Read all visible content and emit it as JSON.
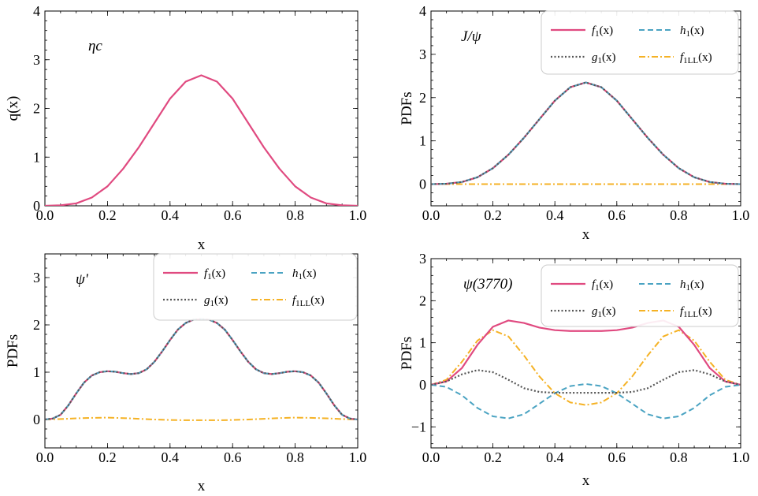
{
  "colors": {
    "f1": "#E04A80",
    "h1": "#4AA3C2",
    "g1": "#555555",
    "f1LL": "#F5B225"
  },
  "chart_data": [
    {
      "type": "line",
      "annotation": "ηc",
      "xlabel": "x",
      "ylabel": "q(x)",
      "xlim": [
        0,
        1
      ],
      "ylim": [
        0,
        4
      ],
      "xticks": [
        "0.0",
        "0.2",
        "0.4",
        "0.6",
        "0.8",
        "1.0"
      ],
      "yticks": [
        "0",
        "1",
        "2",
        "3",
        "4"
      ],
      "legend": null,
      "series": [
        {
          "key": "f1",
          "x": [
            0,
            0.05,
            0.1,
            0.15,
            0.2,
            0.25,
            0.3,
            0.35,
            0.4,
            0.45,
            0.5,
            0.55,
            0.6,
            0.65,
            0.7,
            0.75,
            0.8,
            0.85,
            0.9,
            0.95,
            1
          ],
          "y": [
            0,
            0.01,
            0.05,
            0.17,
            0.4,
            0.76,
            1.2,
            1.7,
            2.2,
            2.55,
            2.68,
            2.55,
            2.2,
            1.7,
            1.2,
            0.76,
            0.4,
            0.17,
            0.05,
            0.01,
            0
          ]
        }
      ]
    },
    {
      "type": "line",
      "annotation": "J/ψ",
      "xlabel": "x",
      "ylabel": "PDFs",
      "xlim": [
        0,
        1
      ],
      "ylim": [
        -0.5,
        4
      ],
      "xticks": [
        "0.0",
        "0.2",
        "0.4",
        "0.6",
        "0.8",
        "1.0"
      ],
      "yticks": [
        "0",
        "1",
        "2",
        "3",
        "4"
      ],
      "legend": "top-right",
      "series": [
        {
          "key": "f1",
          "legend": "f1(x)",
          "x": [
            0,
            0.05,
            0.1,
            0.15,
            0.2,
            0.25,
            0.3,
            0.35,
            0.4,
            0.45,
            0.5,
            0.55,
            0.6,
            0.65,
            0.7,
            0.75,
            0.8,
            0.85,
            0.9,
            0.95,
            1
          ],
          "y": [
            0,
            0.01,
            0.05,
            0.16,
            0.37,
            0.68,
            1.07,
            1.5,
            1.93,
            2.24,
            2.35,
            2.24,
            1.93,
            1.5,
            1.07,
            0.68,
            0.37,
            0.16,
            0.05,
            0.01,
            0
          ]
        },
        {
          "key": "h1",
          "legend": "h1(x)",
          "x": [
            0,
            0.05,
            0.1,
            0.15,
            0.2,
            0.25,
            0.3,
            0.35,
            0.4,
            0.45,
            0.5,
            0.55,
            0.6,
            0.65,
            0.7,
            0.75,
            0.8,
            0.85,
            0.9,
            0.95,
            1
          ],
          "y": [
            0,
            0.01,
            0.05,
            0.16,
            0.37,
            0.68,
            1.07,
            1.5,
            1.93,
            2.24,
            2.35,
            2.24,
            1.93,
            1.5,
            1.07,
            0.68,
            0.37,
            0.16,
            0.05,
            0.01,
            0
          ]
        },
        {
          "key": "g1",
          "legend": "g1(x)",
          "x": [
            0,
            0.05,
            0.1,
            0.15,
            0.2,
            0.25,
            0.3,
            0.35,
            0.4,
            0.45,
            0.5,
            0.55,
            0.6,
            0.65,
            0.7,
            0.75,
            0.8,
            0.85,
            0.9,
            0.95,
            1
          ],
          "y": [
            0,
            0.01,
            0.05,
            0.16,
            0.37,
            0.68,
            1.07,
            1.5,
            1.93,
            2.24,
            2.35,
            2.24,
            1.93,
            1.5,
            1.07,
            0.68,
            0.37,
            0.16,
            0.05,
            0.01,
            0
          ]
        },
        {
          "key": "f1LL",
          "legend": "f1LL(x)",
          "x": [
            0,
            0.1,
            0.2,
            0.3,
            0.4,
            0.5,
            0.6,
            0.7,
            0.8,
            0.9,
            1
          ],
          "y": [
            0,
            0,
            0,
            0,
            0,
            0,
            0,
            0,
            0,
            0,
            0
          ]
        }
      ]
    },
    {
      "type": "line",
      "annotation": "ψ'",
      "xlabel": "x",
      "ylabel": "PDFs",
      "xlim": [
        0,
        1
      ],
      "ylim": [
        -0.6,
        3.5
      ],
      "xticks": [
        "0.0",
        "0.2",
        "0.4",
        "0.6",
        "0.8",
        "1.0"
      ],
      "yticks": [
        "0",
        "1",
        "2",
        "3"
      ],
      "legend": "top-right",
      "series": [
        {
          "key": "f1",
          "legend": "f1(x)",
          "x": [
            0,
            0.025,
            0.05,
            0.075,
            0.1,
            0.125,
            0.15,
            0.175,
            0.2,
            0.225,
            0.25,
            0.275,
            0.3,
            0.325,
            0.35,
            0.375,
            0.4,
            0.425,
            0.45,
            0.475,
            0.5,
            0.525,
            0.55,
            0.575,
            0.6,
            0.625,
            0.65,
            0.675,
            0.7,
            0.725,
            0.75,
            0.775,
            0.8,
            0.825,
            0.85,
            0.875,
            0.9,
            0.925,
            0.95,
            0.975,
            1
          ],
          "y": [
            0,
            0.02,
            0.1,
            0.3,
            0.55,
            0.78,
            0.93,
            1.0,
            1.02,
            1.01,
            0.98,
            0.96,
            0.98,
            1.06,
            1.22,
            1.44,
            1.68,
            1.9,
            2.04,
            2.11,
            2.12,
            2.11,
            2.04,
            1.9,
            1.68,
            1.44,
            1.22,
            1.06,
            0.98,
            0.96,
            0.98,
            1.01,
            1.02,
            1.0,
            0.93,
            0.78,
            0.55,
            0.3,
            0.1,
            0.02,
            0
          ]
        },
        {
          "key": "h1",
          "legend": "h1(x)",
          "x": [
            0,
            0.025,
            0.05,
            0.075,
            0.1,
            0.125,
            0.15,
            0.175,
            0.2,
            0.225,
            0.25,
            0.275,
            0.3,
            0.325,
            0.35,
            0.375,
            0.4,
            0.425,
            0.45,
            0.475,
            0.5,
            0.525,
            0.55,
            0.575,
            0.6,
            0.625,
            0.65,
            0.675,
            0.7,
            0.725,
            0.75,
            0.775,
            0.8,
            0.825,
            0.85,
            0.875,
            0.9,
            0.925,
            0.95,
            0.975,
            1
          ],
          "y": [
            0,
            0.02,
            0.1,
            0.3,
            0.55,
            0.78,
            0.93,
            1.0,
            1.02,
            1.01,
            0.98,
            0.96,
            0.98,
            1.06,
            1.22,
            1.44,
            1.68,
            1.9,
            2.04,
            2.11,
            2.12,
            2.11,
            2.04,
            1.9,
            1.68,
            1.44,
            1.22,
            1.06,
            0.98,
            0.96,
            0.98,
            1.01,
            1.02,
            1.0,
            0.93,
            0.78,
            0.55,
            0.3,
            0.1,
            0.02,
            0
          ]
        },
        {
          "key": "g1",
          "legend": "g1(x)",
          "x": [
            0,
            0.025,
            0.05,
            0.075,
            0.1,
            0.125,
            0.15,
            0.175,
            0.2,
            0.225,
            0.25,
            0.275,
            0.3,
            0.325,
            0.35,
            0.375,
            0.4,
            0.425,
            0.45,
            0.475,
            0.5,
            0.525,
            0.55,
            0.575,
            0.6,
            0.625,
            0.65,
            0.675,
            0.7,
            0.725,
            0.75,
            0.775,
            0.8,
            0.825,
            0.85,
            0.875,
            0.9,
            0.925,
            0.95,
            0.975,
            1
          ],
          "y": [
            0,
            0.02,
            0.1,
            0.3,
            0.55,
            0.78,
            0.93,
            1.0,
            1.02,
            1.01,
            0.98,
            0.96,
            0.98,
            1.06,
            1.22,
            1.44,
            1.68,
            1.9,
            2.04,
            2.11,
            2.12,
            2.11,
            2.04,
            1.9,
            1.68,
            1.44,
            1.22,
            1.06,
            0.98,
            0.96,
            0.98,
            1.01,
            1.02,
            1.0,
            0.93,
            0.78,
            0.55,
            0.3,
            0.1,
            0.02,
            0
          ]
        },
        {
          "key": "f1LL",
          "legend": "f1LL(x)",
          "x": [
            0,
            0.05,
            0.1,
            0.15,
            0.2,
            0.25,
            0.3,
            0.35,
            0.4,
            0.45,
            0.5,
            0.55,
            0.6,
            0.65,
            0.7,
            0.75,
            0.8,
            0.85,
            0.9,
            0.95,
            1
          ],
          "y": [
            0,
            0.01,
            0.025,
            0.035,
            0.04,
            0.03,
            0.015,
            0,
            -0.01,
            -0.015,
            -0.015,
            -0.015,
            -0.01,
            0,
            0.015,
            0.03,
            0.04,
            0.035,
            0.025,
            0.01,
            0
          ]
        }
      ]
    },
    {
      "type": "line",
      "annotation": "ψ(3770)",
      "xlabel": "x",
      "ylabel": "PDFs",
      "xlim": [
        0,
        1
      ],
      "ylim": [
        -1.5,
        3
      ],
      "xticks": [
        "0.0",
        "0.2",
        "0.4",
        "0.6",
        "0.8",
        "1.0"
      ],
      "yticks": [
        "−1",
        "0",
        "1",
        "2",
        "3"
      ],
      "legend": "top-right",
      "series": [
        {
          "key": "f1",
          "legend": "f1(x)",
          "x": [
            0,
            0.05,
            0.1,
            0.15,
            0.2,
            0.25,
            0.3,
            0.35,
            0.4,
            0.45,
            0.5,
            0.55,
            0.6,
            0.65,
            0.7,
            0.75,
            0.8,
            0.85,
            0.9,
            0.95,
            1
          ],
          "y": [
            0,
            0.08,
            0.4,
            0.95,
            1.38,
            1.53,
            1.47,
            1.36,
            1.3,
            1.28,
            1.28,
            1.28,
            1.3,
            1.36,
            1.47,
            1.53,
            1.38,
            0.95,
            0.4,
            0.08,
            0
          ]
        },
        {
          "key": "h1",
          "legend": "h1(x)",
          "x": [
            0,
            0.05,
            0.1,
            0.15,
            0.2,
            0.25,
            0.3,
            0.35,
            0.4,
            0.45,
            0.5,
            0.55,
            0.6,
            0.65,
            0.7,
            0.75,
            0.8,
            0.85,
            0.9,
            0.95,
            1
          ],
          "y": [
            0,
            -0.05,
            -0.25,
            -0.55,
            -0.75,
            -0.8,
            -0.7,
            -0.45,
            -0.2,
            -0.03,
            0.02,
            -0.03,
            -0.2,
            -0.45,
            -0.7,
            -0.8,
            -0.75,
            -0.55,
            -0.25,
            -0.05,
            0
          ]
        },
        {
          "key": "g1",
          "legend": "g1(x)",
          "x": [
            0,
            0.05,
            0.1,
            0.15,
            0.2,
            0.25,
            0.3,
            0.35,
            0.4,
            0.45,
            0.5,
            0.55,
            0.6,
            0.65,
            0.7,
            0.75,
            0.8,
            0.85,
            0.9,
            0.95,
            1
          ],
          "y": [
            0,
            0.08,
            0.25,
            0.35,
            0.3,
            0.12,
            -0.08,
            -0.17,
            -0.19,
            -0.19,
            -0.19,
            -0.19,
            -0.19,
            -0.17,
            -0.08,
            0.12,
            0.3,
            0.35,
            0.25,
            0.08,
            0
          ]
        },
        {
          "key": "f1LL",
          "legend": "f1LL(x)",
          "x": [
            0,
            0.05,
            0.1,
            0.15,
            0.2,
            0.25,
            0.3,
            0.35,
            0.4,
            0.45,
            0.5,
            0.55,
            0.6,
            0.65,
            0.7,
            0.75,
            0.8,
            0.85,
            0.9,
            0.95,
            1
          ],
          "y": [
            0,
            0.12,
            0.55,
            1.05,
            1.3,
            1.15,
            0.7,
            0.2,
            -0.2,
            -0.42,
            -0.48,
            -0.42,
            -0.2,
            0.2,
            0.7,
            1.15,
            1.3,
            1.05,
            0.55,
            0.12,
            0
          ]
        }
      ]
    }
  ]
}
